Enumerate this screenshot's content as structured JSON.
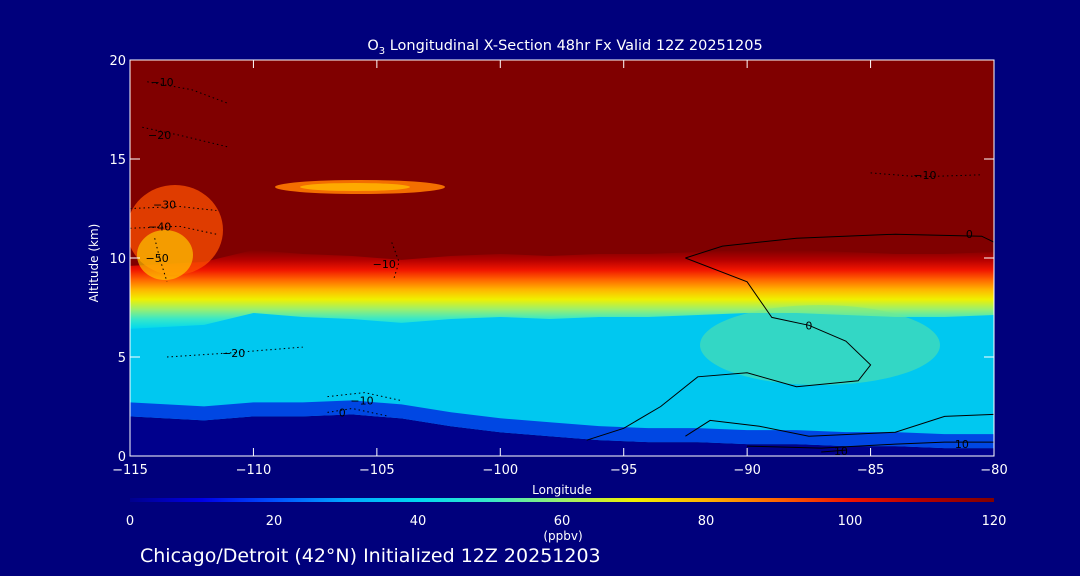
{
  "chart_data": {
    "type": "heatmap",
    "title": {
      "prefix": "O",
      "subscript": "3",
      "rest": " Longitudinal X-Section 48hr  Fx Valid 12Z 20251205"
    },
    "xlabel": "Longitude",
    "ylabel": "Altitude (km)",
    "xlim": [
      -115,
      -80
    ],
    "ylim": [
      0,
      20
    ],
    "x_ticks": [
      -115,
      -110,
      -105,
      -100,
      -95,
      -90,
      -85,
      -80
    ],
    "x_tick_labels": [
      "−115",
      "−110",
      "−105",
      "−100",
      "−95",
      "−90",
      "−85",
      "−80"
    ],
    "y_ticks": [
      0,
      5,
      10,
      15,
      20
    ],
    "y_tick_labels": [
      "0",
      "5",
      "10",
      "15",
      "20"
    ],
    "colorbar": {
      "label": "(ppbv)",
      "range": [
        0,
        120
      ],
      "ticks": [
        0,
        20,
        40,
        60,
        80,
        100,
        120
      ],
      "tick_labels": [
        "0",
        "20",
        "40",
        "60",
        "80",
        "100",
        "120"
      ],
      "stops": [
        {
          "v": 0,
          "color": "#00008c"
        },
        {
          "v": 10,
          "color": "#0000e6"
        },
        {
          "v": 20,
          "color": "#0050ff"
        },
        {
          "v": 30,
          "color": "#00a8ff"
        },
        {
          "v": 40,
          "color": "#00d8f0"
        },
        {
          "v": 50,
          "color": "#38e8c8"
        },
        {
          "v": 60,
          "color": "#9cf06c"
        },
        {
          "v": 70,
          "color": "#f0f000"
        },
        {
          "v": 80,
          "color": "#ffb400"
        },
        {
          "v": 90,
          "color": "#ff6400"
        },
        {
          "v": 100,
          "color": "#f01400"
        },
        {
          "v": 110,
          "color": "#b40000"
        },
        {
          "v": 120,
          "color": "#800000"
        }
      ]
    },
    "field": {
      "lon": [
        -115,
        -112,
        -110,
        -108,
        -106,
        -104,
        -102,
        -100,
        -98,
        -96,
        -94,
        -92,
        -90,
        -88,
        -86,
        -84,
        -82,
        -80
      ],
      "surface_km": [
        2.0,
        1.8,
        2.0,
        2.0,
        2.1,
        1.9,
        1.5,
        1.2,
        1.0,
        0.8,
        0.7,
        0.7,
        0.6,
        0.6,
        0.5,
        0.5,
        0.4,
        0.4
      ],
      "tropopause_km": [
        9.2,
        9.4,
        10.0,
        9.8,
        9.7,
        9.5,
        9.7,
        9.8,
        9.7,
        9.8,
        9.8,
        9.9,
        10.0,
        10.0,
        9.9,
        9.8,
        9.8,
        9.9
      ],
      "high_ozone_base_km": 14
    },
    "contours": [
      {
        "label": "−10",
        "style": "dotted",
        "points": [
          [
            -114.3,
            18.9
          ],
          [
            -112.5,
            18.5
          ],
          [
            -111,
            17.8
          ]
        ],
        "label_at": [
          -113.7,
          18.9
        ]
      },
      {
        "label": "−20",
        "style": "dotted",
        "points": [
          [
            -114.5,
            16.6
          ],
          [
            -113,
            16.2
          ],
          [
            -111,
            15.6
          ]
        ],
        "label_at": [
          -113.8,
          16.2
        ]
      },
      {
        "label": "−30",
        "style": "dotted",
        "points": [
          [
            -115,
            12.5
          ],
          [
            -113,
            12.6
          ],
          [
            -111.5,
            12.4
          ]
        ],
        "label_at": [
          -113.6,
          12.7
        ]
      },
      {
        "label": "−40",
        "style": "dotted",
        "points": [
          [
            -115,
            11.5
          ],
          [
            -113,
            11.6
          ],
          [
            -111.5,
            11.2
          ]
        ],
        "label_at": [
          -113.8,
          11.6
        ]
      },
      {
        "label": "−50",
        "style": "dotted",
        "points": [
          [
            -114,
            11.0
          ],
          [
            -113.8,
            10.0
          ],
          [
            -113.5,
            8.8
          ]
        ],
        "label_at": [
          -113.9,
          10.0
        ]
      },
      {
        "label": "−10",
        "style": "dotted",
        "points": [
          [
            -107,
            3.0
          ],
          [
            -105.5,
            3.2
          ],
          [
            -104,
            2.8
          ]
        ],
        "label_at": [
          -105.6,
          2.8
        ]
      },
      {
        "label": "0",
        "style": "dotted",
        "points": [
          [
            -107,
            2.2
          ],
          [
            -106,
            2.4
          ],
          [
            -104.5,
            2.0
          ]
        ],
        "label_at": [
          -106.4,
          2.2
        ]
      },
      {
        "label": "−20",
        "style": "dotted",
        "points": [
          [
            -113.5,
            5.0
          ],
          [
            -111,
            5.2
          ],
          [
            -108,
            5.5
          ]
        ],
        "label_at": [
          -110.8,
          5.2
        ]
      },
      {
        "label": "−10",
        "style": "dotted",
        "points": [
          [
            -104.3,
            9.0
          ],
          [
            -104.1,
            9.8
          ],
          [
            -104.4,
            10.8
          ]
        ],
        "label_at": [
          -104.7,
          9.7
        ]
      },
      {
        "label": "−10",
        "style": "dotted",
        "points": [
          [
            -85,
            14.3
          ],
          [
            -83,
            14.1
          ],
          [
            -80.5,
            14.2
          ]
        ],
        "label_at": [
          -82.8,
          14.2
        ]
      },
      {
        "label": "0",
        "style": "solid",
        "points": [
          [
            -92.5,
            10.0
          ],
          [
            -91,
            10.6
          ],
          [
            -88,
            11.0
          ],
          [
            -84,
            11.2
          ],
          [
            -80.5,
            11.1
          ],
          [
            -80,
            10.8
          ]
        ],
        "label_at": [
          -81,
          11.2
        ]
      },
      {
        "label": "0",
        "style": "solid",
        "points": [
          [
            -92.5,
            10.0
          ],
          [
            -90,
            8.8
          ],
          [
            -89,
            7.0
          ],
          [
            -87.5,
            6.6
          ],
          [
            -86,
            5.8
          ],
          [
            -85,
            4.6
          ],
          [
            -85.5,
            3.8
          ],
          [
            -88,
            3.5
          ],
          [
            -90,
            4.2
          ],
          [
            -92,
            4.0
          ],
          [
            -93.5,
            2.5
          ],
          [
            -95,
            1.4
          ],
          [
            -96.5,
            0.8
          ]
        ],
        "label_at": [
          -87.5,
          6.6
        ]
      },
      {
        "label": "",
        "style": "solid",
        "points": [
          [
            -92.5,
            1.0
          ],
          [
            -91.5,
            1.8
          ],
          [
            -89.5,
            1.5
          ],
          [
            -87.5,
            1.0
          ],
          [
            -84,
            1.2
          ],
          [
            -82,
            2.0
          ],
          [
            -80,
            2.1
          ]
        ],
        "label_at": null
      },
      {
        "label": "10",
        "style": "solid",
        "points": [
          [
            -90,
            0.5
          ],
          [
            -87,
            0.4
          ],
          [
            -84,
            0.6
          ],
          [
            -82,
            0.7
          ],
          [
            -80,
            0.7
          ]
        ],
        "label_at": [
          -81.3,
          0.6
        ]
      },
      {
        "label": "10",
        "style": "solid",
        "points": [
          [
            -87,
            0.2
          ],
          [
            -86,
            0.3
          ]
        ],
        "label_at": [
          -86.2,
          0.25
        ]
      }
    ],
    "grid": false,
    "legend": "colorbar-bottom"
  },
  "footer": {
    "caption": "Chicago/Detroit (42°N) Initialized 12Z 20251203"
  }
}
